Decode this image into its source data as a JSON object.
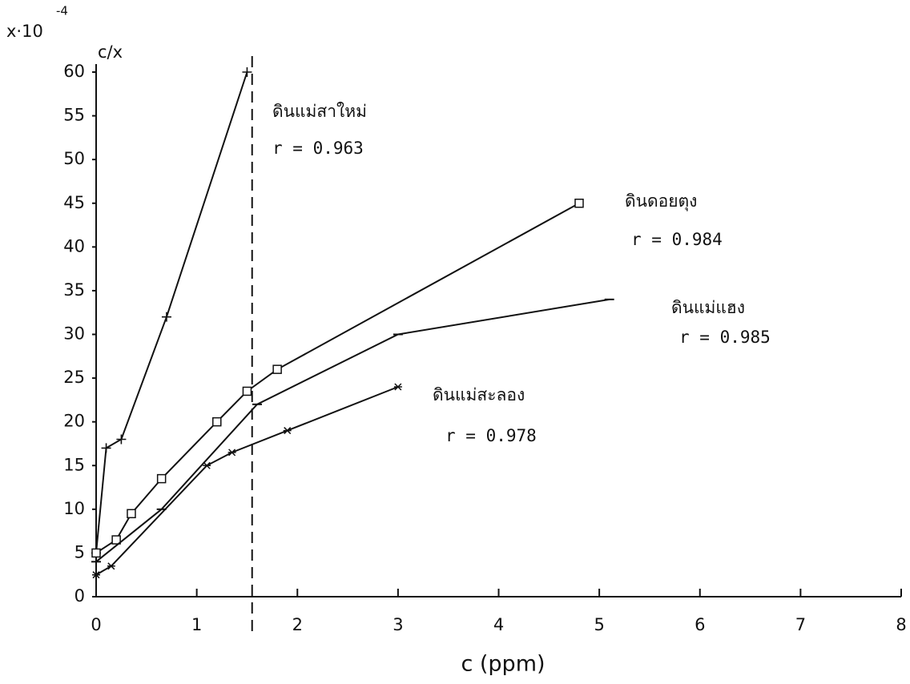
{
  "chart_data": {
    "type": "line",
    "y_unit_label": "x·10",
    "y_unit_exponent": "-4",
    "y_label": "c/x",
    "x_label": "c (ppm)",
    "xlim": [
      0,
      8
    ],
    "xticks": [
      0,
      1,
      2,
      3,
      4,
      5,
      6,
      7,
      8
    ],
    "ylim": [
      0,
      60
    ],
    "yticks": [
      0,
      5,
      10,
      15,
      20,
      25,
      30,
      35,
      40,
      45,
      50,
      55,
      60
    ],
    "reference_x": 1.55,
    "series": [
      {
        "name": "ดินแม่สาใหม่",
        "r_label": "r = 0.963",
        "color": "#111111",
        "marker": "plus",
        "x": [
          0,
          0.1,
          0.25,
          0.7,
          1.5
        ],
        "values": [
          5,
          17,
          18,
          32,
          60
        ]
      },
      {
        "name": "ดินดอยตุง",
        "r_label": "r = 0.984",
        "color": "#111111",
        "marker": "square",
        "x": [
          0,
          0.2,
          0.35,
          0.65,
          1.2,
          1.5,
          1.8,
          4.8
        ],
        "values": [
          5,
          6.5,
          9.5,
          13.5,
          20,
          23.5,
          26,
          45
        ]
      },
      {
        "name": "ดินแม่แฮง",
        "r_label": "r = 0.985",
        "color": "#111111",
        "marker": "dash",
        "x": [
          0,
          0.65,
          1.6,
          3,
          5.1
        ],
        "values": [
          4,
          10,
          22,
          30,
          34
        ]
      },
      {
        "name": "ดินแม่สะลอง",
        "r_label": "r = 0.978",
        "color": "#111111",
        "marker": "star",
        "x": [
          0,
          0.15,
          1.1,
          1.35,
          1.9,
          3
        ],
        "values": [
          2.5,
          3.5,
          15,
          16.5,
          19,
          24
        ]
      }
    ]
  }
}
